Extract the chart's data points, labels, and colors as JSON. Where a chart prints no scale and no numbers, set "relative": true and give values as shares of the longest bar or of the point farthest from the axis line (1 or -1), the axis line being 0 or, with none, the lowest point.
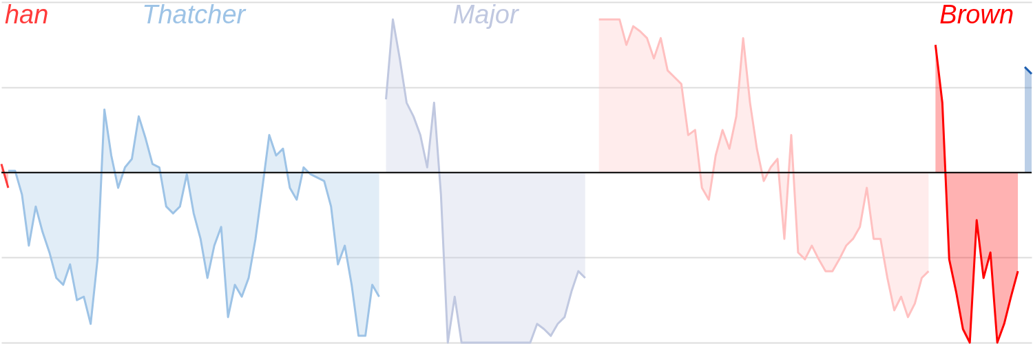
{
  "chart_data": {
    "type": "area",
    "relative": true,
    "grid": "y",
    "marker": "none",
    "line_style": "solid",
    "categories": [
      null,
      null,
      null,
      null,
      null,
      null,
      null,
      null,
      null,
      null,
      null,
      null,
      null,
      null,
      null,
      null,
      null,
      null,
      null,
      null,
      null,
      null,
      null,
      null,
      null,
      null,
      null,
      null,
      null,
      null,
      null,
      null,
      null,
      null,
      null,
      null,
      null,
      null,
      null,
      null,
      null,
      null,
      null,
      null,
      null,
      null,
      null,
      null,
      null,
      null,
      null,
      null,
      null,
      null,
      null,
      null,
      null,
      null,
      null,
      null,
      null,
      null,
      null,
      null,
      null,
      null,
      null,
      null,
      null,
      null,
      null,
      null,
      null,
      null,
      null,
      null,
      null,
      null,
      null,
      null,
      null,
      null,
      null,
      null,
      null,
      null,
      null,
      null,
      null,
      null,
      null,
      null,
      null,
      null,
      null,
      null,
      null,
      null,
      null,
      null,
      null,
      null,
      null,
      null,
      null,
      null,
      null,
      null,
      null,
      null,
      null,
      null,
      null,
      null,
      null,
      null,
      null,
      null,
      null,
      null,
      null,
      null,
      null,
      null,
      null,
      null,
      null,
      null,
      null,
      null,
      null,
      null,
      null,
      null,
      null,
      null,
      null,
      null,
      null,
      null,
      null,
      null,
      null,
      null,
      null,
      null,
      null,
      null,
      null,
      null,
      null
    ],
    "series": [
      {
        "name": "han",
        "color": "#ff3b3b",
        "values": [
          0.05,
          -0.09,
          null,
          null,
          null,
          null,
          null,
          null,
          null,
          null,
          null,
          null,
          null,
          null,
          null,
          null,
          null,
          null,
          null,
          null,
          null,
          null,
          null,
          null,
          null,
          null,
          null,
          null,
          null,
          null,
          null,
          null,
          null,
          null,
          null,
          null,
          null,
          null,
          null,
          null,
          null,
          null,
          null,
          null,
          null,
          null,
          null,
          null,
          null,
          null,
          null,
          null,
          null,
          null,
          null,
          null,
          null,
          null,
          null,
          null,
          null,
          null,
          null,
          null,
          null,
          null,
          null,
          null,
          null,
          null,
          null,
          null,
          null,
          null,
          null,
          null,
          null,
          null,
          null,
          null,
          null,
          null,
          null,
          null,
          null,
          null,
          null,
          null,
          null,
          null,
          null,
          null,
          null,
          null,
          null,
          null,
          null,
          null,
          null,
          null,
          null,
          null,
          null,
          null,
          null,
          null,
          null,
          null,
          null,
          null,
          null,
          null,
          null,
          null,
          null,
          null,
          null,
          null,
          null,
          null,
          null,
          null,
          null,
          null,
          null,
          null,
          null,
          null,
          null,
          null,
          null,
          null,
          null,
          null,
          null,
          null,
          null,
          null,
          null,
          null,
          null,
          null,
          null,
          null,
          null,
          null,
          null,
          null,
          null,
          null,
          null
        ]
      },
      {
        "name": "Thatcher",
        "color": "#9dc3e6",
        "values": [
          null,
          0.01,
          0.01,
          -0.13,
          -0.43,
          -0.2,
          -0.35,
          -0.47,
          -0.62,
          -0.66,
          -0.54,
          -0.75,
          -0.73,
          -0.89,
          -0.51,
          0.37,
          0.1,
          -0.09,
          0.03,
          0.08,
          0.33,
          0.2,
          0.05,
          0.03,
          -0.2,
          -0.24,
          -0.2,
          -0.01,
          -0.24,
          -0.39,
          -0.62,
          -0.43,
          -0.32,
          -0.85,
          -0.66,
          -0.73,
          -0.62,
          -0.39,
          -0.09,
          0.22,
          0.1,
          0.14,
          -0.09,
          -0.16,
          0.03,
          -0.01,
          -0.03,
          -0.05,
          -0.2,
          -0.54,
          -0.43,
          -0.66,
          -0.96,
          -0.96,
          -0.66,
          -0.73,
          null,
          null,
          null,
          null,
          null,
          null,
          null,
          null,
          null,
          null,
          null,
          null,
          null,
          null,
          null,
          null,
          null,
          null,
          null,
          null,
          null,
          null,
          null,
          null,
          null,
          null,
          null,
          null,
          null,
          null,
          null,
          null,
          null,
          null,
          null,
          null,
          null,
          null,
          null,
          null,
          null,
          null,
          null,
          null,
          null,
          null,
          null,
          null,
          null,
          null,
          null,
          null,
          null,
          null,
          null,
          null,
          null,
          null,
          null,
          null,
          null,
          null,
          null,
          null,
          null,
          null,
          null,
          null,
          null,
          null,
          null,
          null,
          null,
          null,
          null,
          null,
          null,
          null,
          null,
          null,
          null,
          null,
          null,
          null,
          null,
          null,
          null,
          null,
          null,
          null,
          null,
          null,
          null,
          null,
          null
        ]
      },
      {
        "name": "Major",
        "color": "#c0c8e0",
        "values": [
          null,
          null,
          null,
          null,
          null,
          null,
          null,
          null,
          null,
          null,
          null,
          null,
          null,
          null,
          null,
          null,
          null,
          null,
          null,
          null,
          null,
          null,
          null,
          null,
          null,
          null,
          null,
          null,
          null,
          null,
          null,
          null,
          null,
          null,
          null,
          null,
          null,
          null,
          null,
          null,
          null,
          null,
          null,
          null,
          null,
          null,
          null,
          null,
          null,
          null,
          null,
          null,
          null,
          null,
          null,
          null,
          0.43,
          0.9,
          0.67,
          0.41,
          0.33,
          0.22,
          0.03,
          0.41,
          -0.13,
          -1,
          -0.73,
          -1,
          -1,
          -1,
          -1,
          -1,
          -1,
          -1,
          -1,
          -1,
          -1,
          -1,
          -0.89,
          -0.92,
          -0.96,
          -0.89,
          -0.85,
          -0.7,
          -0.58,
          -0.62,
          null,
          null,
          null,
          null,
          null,
          null,
          null,
          null,
          null,
          null,
          null,
          null,
          null,
          null,
          null,
          null,
          null,
          null,
          null,
          null,
          null,
          null,
          null,
          null,
          null,
          null,
          null,
          null,
          null,
          null,
          null,
          null,
          null,
          null,
          null,
          null,
          null,
          null,
          null,
          null,
          null,
          null,
          null,
          null,
          null,
          null,
          null,
          null,
          null,
          null,
          null,
          null,
          null,
          null,
          null,
          null,
          null,
          null,
          null,
          null,
          null,
          null,
          null,
          null,
          null
        ]
      },
      {
        "name": null,
        "color": "#ffc0c0",
        "values": [
          null,
          null,
          null,
          null,
          null,
          null,
          null,
          null,
          null,
          null,
          null,
          null,
          null,
          null,
          null,
          null,
          null,
          null,
          null,
          null,
          null,
          null,
          null,
          null,
          null,
          null,
          null,
          null,
          null,
          null,
          null,
          null,
          null,
          null,
          null,
          null,
          null,
          null,
          null,
          null,
          null,
          null,
          null,
          null,
          null,
          null,
          null,
          null,
          null,
          null,
          null,
          null,
          null,
          null,
          null,
          null,
          null,
          null,
          null,
          null,
          null,
          null,
          null,
          null,
          null,
          null,
          null,
          null,
          null,
          null,
          null,
          null,
          null,
          null,
          null,
          null,
          null,
          null,
          null,
          null,
          null,
          null,
          null,
          null,
          null,
          null,
          null,
          0.9,
          0.9,
          0.9,
          0.9,
          0.75,
          0.86,
          0.83,
          0.79,
          0.67,
          0.79,
          0.6,
          0.56,
          0.52,
          0.22,
          0.25,
          -0.09,
          -0.16,
          0.1,
          0.25,
          0.14,
          0.33,
          0.79,
          0.41,
          0.14,
          -0.05,
          0.03,
          0.08,
          -0.39,
          0.22,
          -0.47,
          -0.51,
          -0.43,
          -0.51,
          -0.58,
          -0.58,
          -0.51,
          -0.43,
          -0.39,
          -0.32,
          -0.09,
          -0.39,
          -0.39,
          -0.62,
          -0.81,
          -0.73,
          -0.85,
          -0.77,
          -0.62,
          -0.58,
          null,
          null,
          null,
          null,
          null,
          null,
          null,
          null,
          null,
          null,
          null,
          null,
          null,
          null,
          null
        ]
      },
      {
        "name": "Brown",
        "color": "#ff0000",
        "values": [
          null,
          null,
          null,
          null,
          null,
          null,
          null,
          null,
          null,
          null,
          null,
          null,
          null,
          null,
          null,
          null,
          null,
          null,
          null,
          null,
          null,
          null,
          null,
          null,
          null,
          null,
          null,
          null,
          null,
          null,
          null,
          null,
          null,
          null,
          null,
          null,
          null,
          null,
          null,
          null,
          null,
          null,
          null,
          null,
          null,
          null,
          null,
          null,
          null,
          null,
          null,
          null,
          null,
          null,
          null,
          null,
          null,
          null,
          null,
          null,
          null,
          null,
          null,
          null,
          null,
          null,
          null,
          null,
          null,
          null,
          null,
          null,
          null,
          null,
          null,
          null,
          null,
          null,
          null,
          null,
          null,
          null,
          null,
          null,
          null,
          null,
          null,
          null,
          null,
          null,
          null,
          null,
          null,
          null,
          null,
          null,
          null,
          null,
          null,
          null,
          null,
          null,
          null,
          null,
          null,
          null,
          null,
          null,
          null,
          null,
          null,
          null,
          null,
          null,
          null,
          null,
          null,
          null,
          null,
          null,
          null,
          null,
          null,
          null,
          null,
          null,
          null,
          null,
          null,
          null,
          null,
          null,
          null,
          null,
          null,
          null,
          0.75,
          0.41,
          -0.51,
          -0.7,
          -0.92,
          -1,
          -0.28,
          -0.62,
          -0.47,
          -1,
          -0.89,
          -0.73,
          -0.58,
          null,
          null
        ]
      },
      {
        "name": null,
        "color": "#1f5fb0",
        "values": [
          null,
          null,
          null,
          null,
          null,
          null,
          null,
          null,
          null,
          null,
          null,
          null,
          null,
          null,
          null,
          null,
          null,
          null,
          null,
          null,
          null,
          null,
          null,
          null,
          null,
          null,
          null,
          null,
          null,
          null,
          null,
          null,
          null,
          null,
          null,
          null,
          null,
          null,
          null,
          null,
          null,
          null,
          null,
          null,
          null,
          null,
          null,
          null,
          null,
          null,
          null,
          null,
          null,
          null,
          null,
          null,
          null,
          null,
          null,
          null,
          null,
          null,
          null,
          null,
          null,
          null,
          null,
          null,
          null,
          null,
          null,
          null,
          null,
          null,
          null,
          null,
          null,
          null,
          null,
          null,
          null,
          null,
          null,
          null,
          null,
          null,
          null,
          null,
          null,
          null,
          null,
          null,
          null,
          null,
          null,
          null,
          null,
          null,
          null,
          null,
          null,
          null,
          null,
          null,
          null,
          null,
          null,
          null,
          null,
          null,
          null,
          null,
          null,
          null,
          null,
          null,
          null,
          null,
          null,
          null,
          null,
          null,
          null,
          null,
          null,
          null,
          null,
          null,
          null,
          null,
          null,
          null,
          null,
          null,
          null,
          null,
          null,
          null,
          null,
          null,
          null,
          null,
          null,
          null,
          null,
          null,
          null,
          null,
          null,
          0.62,
          0.58
        ]
      }
    ]
  }
}
